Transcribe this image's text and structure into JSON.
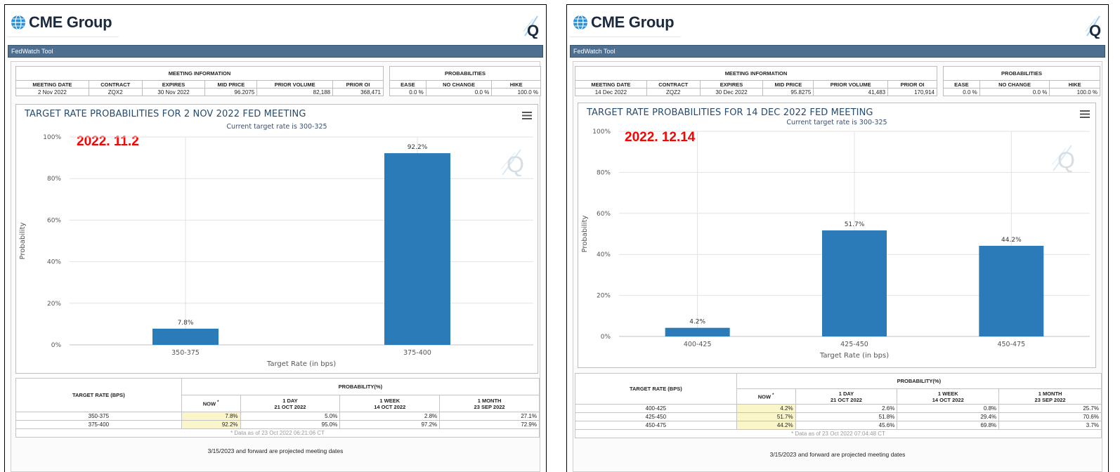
{
  "panels": [
    {
      "logo_text": "CME Group",
      "tool_title": "FedWatch Tool",
      "meeting_info_header": "MEETING INFORMATION",
      "probabilities_header": "PROBABILITIES",
      "info_columns": [
        "MEETING DATE",
        "CONTRACT",
        "EXPIRES",
        "MID PRICE",
        "PRIOR VOLUME",
        "PRIOR OI"
      ],
      "prob_columns": [
        "EASE",
        "NO CHANGE",
        "HIKE"
      ],
      "info_values": [
        "2 Nov 2022",
        "ZQX2",
        "30 Nov 2022",
        "96.2075",
        "82,188",
        "368,471"
      ],
      "prob_values": [
        "0.0 %",
        "0.0 %",
        "100.0 %"
      ],
      "chart_title": "TARGET RATE PROBABILITIES FOR 2 NOV 2022 FED MEETING",
      "chart_subtitle": "Current target rate is 300-325",
      "annotation": "2022. 11.2",
      "table": {
        "rate_header": "TARGET RATE (BPS)",
        "prob_header": "PROBABILITY(%)",
        "now_label": "NOW",
        "now_mark": "*",
        "col_1day_line1": "1 DAY",
        "col_1day_line2": "21 OCT 2022",
        "col_1week_line1": "1 WEEK",
        "col_1week_line2": "14 OCT 2022",
        "col_1month_line1": "1 MONTH",
        "col_1month_line2": "23 SEP 2022",
        "rows": [
          {
            "rate": "350-375",
            "now": "7.8%",
            "day": "5.0%",
            "week": "2.8%",
            "month": "27.1%"
          },
          {
            "rate": "375-400",
            "now": "92.2%",
            "day": "95.0%",
            "week": "97.2%",
            "month": "72.9%"
          }
        ],
        "data_note": "* Data as of 23 Oct 2022 06:21:06 CT",
        "projected_note": "3/15/2023 and forward are projected meeting dates"
      }
    },
    {
      "logo_text": "CME Group",
      "tool_title": "FedWatch Tool",
      "meeting_info_header": "MEETING INFORMATION",
      "probabilities_header": "PROBABILITIES",
      "info_columns": [
        "MEETING DATE",
        "CONTRACT",
        "EXPIRES",
        "MID PRICE",
        "PRIOR VOLUME",
        "PRIOR OI"
      ],
      "prob_columns": [
        "EASE",
        "NO CHANGE",
        "HIKE"
      ],
      "info_values": [
        "14 Dec 2022",
        "ZQZ2",
        "30 Dec 2022",
        "95.8275",
        "41,483",
        "170,914"
      ],
      "prob_values": [
        "0.0 %",
        "0.0 %",
        "100.0 %"
      ],
      "chart_title": "TARGET RATE PROBABILITIES FOR 14 DEC 2022 FED MEETING",
      "chart_subtitle": "Current target rate is 300-325",
      "annotation": "2022. 12.14",
      "table": {
        "rate_header": "TARGET RATE (BPS)",
        "prob_header": "PROBABILITY(%)",
        "now_label": "NOW",
        "now_mark": "*",
        "col_1day_line1": "1 DAY",
        "col_1day_line2": "21 OCT 2022",
        "col_1week_line1": "1 WEEK",
        "col_1week_line2": "14 OCT 2022",
        "col_1month_line1": "1 MONTH",
        "col_1month_line2": "23 SEP 2022",
        "rows": [
          {
            "rate": "400-425",
            "now": "4.2%",
            "day": "2.6%",
            "week": "0.8%",
            "month": "25.7%"
          },
          {
            "rate": "425-450",
            "now": "51.7%",
            "day": "51.8%",
            "week": "29.4%",
            "month": "70.6%"
          },
          {
            "rate": "450-475",
            "now": "44.2%",
            "day": "45.6%",
            "week": "69.8%",
            "month": "3.7%"
          }
        ],
        "data_note": "* Data as of 23 Oct 2022 07:04:48 CT",
        "projected_note": "3/15/2023 and forward are projected meeting dates"
      }
    }
  ],
  "chart_data": [
    {
      "type": "bar",
      "title": "TARGET RATE PROBABILITIES FOR 2 NOV 2022 FED MEETING",
      "subtitle": "Current target rate is 300-325",
      "categories": [
        "350-375",
        "375-400"
      ],
      "values": [
        7.8,
        92.2
      ],
      "data_labels": [
        "7.8%",
        "92.2%"
      ],
      "xlabel": "Target Rate (in bps)",
      "ylabel": "Probability",
      "ylim": [
        0,
        100
      ],
      "yticks": [
        "0%",
        "20%",
        "40%",
        "60%",
        "80%",
        "100%"
      ],
      "color": "#2b7bb9",
      "grid": true
    },
    {
      "type": "bar",
      "title": "TARGET RATE PROBABILITIES FOR 14 DEC 2022 FED MEETING",
      "subtitle": "Current target rate is 300-325",
      "categories": [
        "400-425",
        "425-450",
        "450-475"
      ],
      "values": [
        4.2,
        51.7,
        44.2
      ],
      "data_labels": [
        "4.2%",
        "51.7%",
        "44.2%"
      ],
      "xlabel": "Target Rate (in bps)",
      "ylabel": "Probability",
      "ylim": [
        0,
        100
      ],
      "yticks": [
        "0%",
        "20%",
        "40%",
        "60%",
        "80%",
        "100%"
      ],
      "color": "#2b7bb9",
      "grid": true
    }
  ]
}
